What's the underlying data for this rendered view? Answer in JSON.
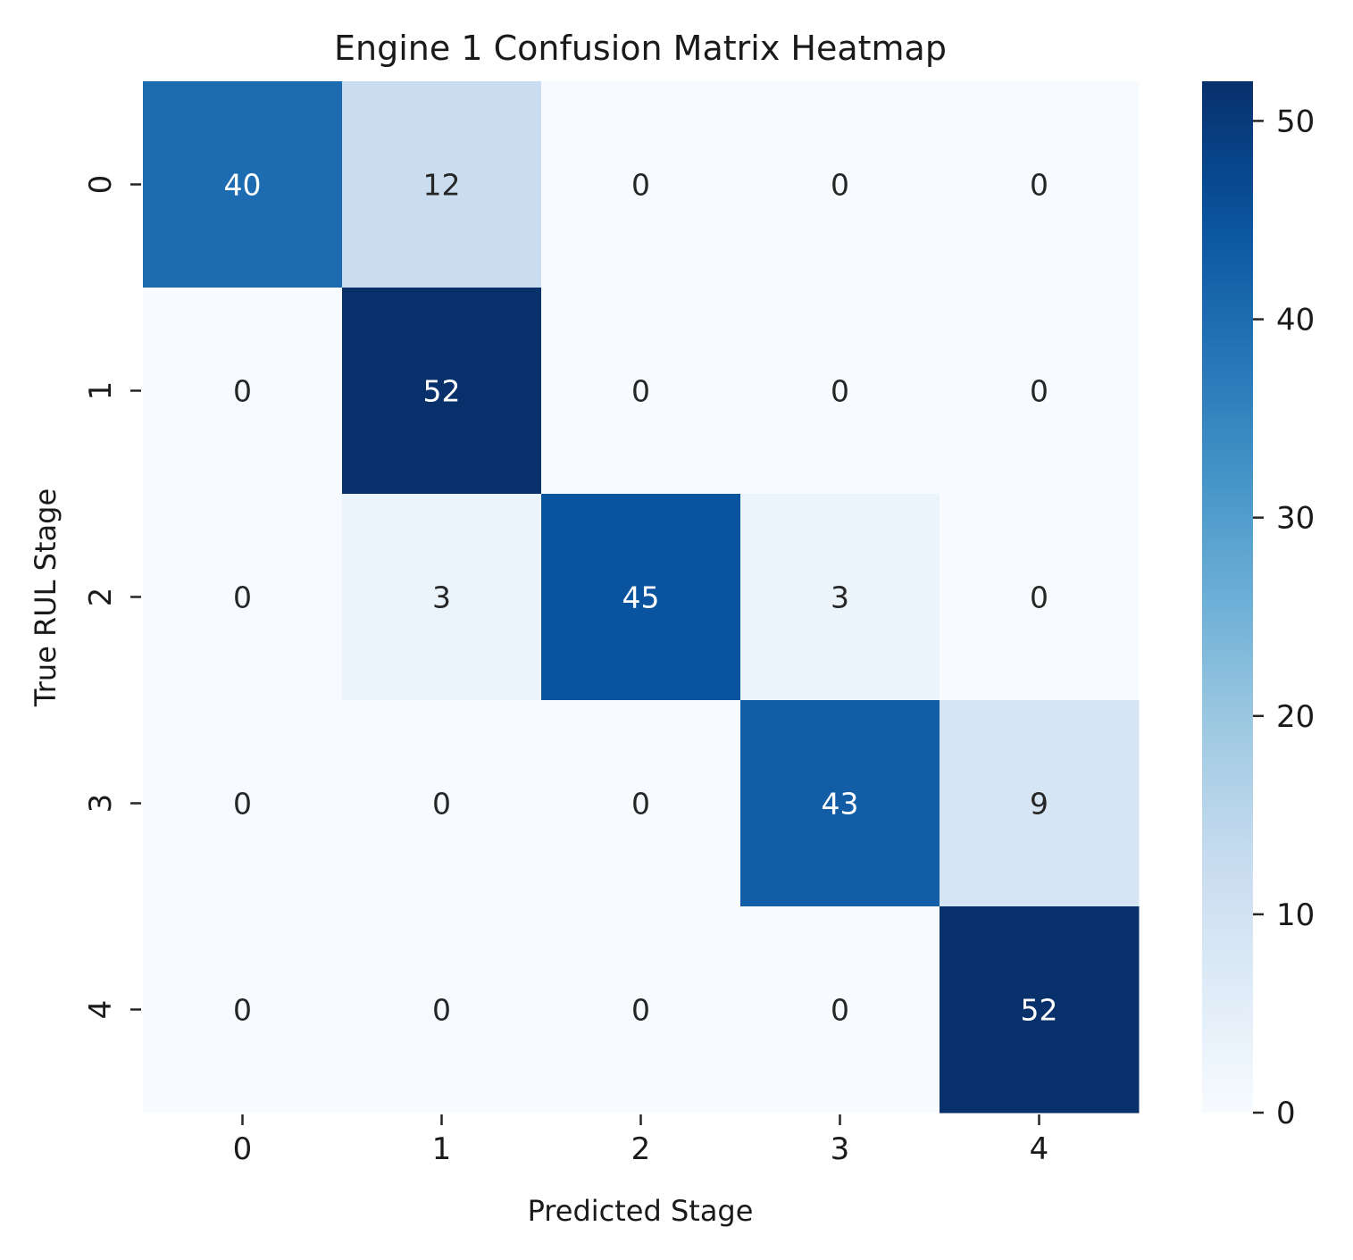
{
  "chart_data": {
    "type": "heatmap",
    "title": "Engine 1 Confusion Matrix Heatmap",
    "xlabel": "Predicted Stage",
    "ylabel": "True RUL Stage",
    "x_categories": [
      "0",
      "1",
      "2",
      "3",
      "4"
    ],
    "y_categories": [
      "0",
      "1",
      "2",
      "3",
      "4"
    ],
    "values": [
      [
        40,
        12,
        0,
        0,
        0
      ],
      [
        0,
        52,
        0,
        0,
        0
      ],
      [
        0,
        3,
        45,
        3,
        0
      ],
      [
        0,
        0,
        0,
        43,
        9
      ],
      [
        0,
        0,
        0,
        0,
        52
      ]
    ],
    "colorbar": {
      "vmin": 0,
      "vmax": 52,
      "ticks": [
        0,
        10,
        20,
        30,
        40,
        50
      ],
      "tick_labels": [
        "0",
        "10",
        "20",
        "30",
        "40",
        "50"
      ]
    },
    "colormap": "Blues",
    "annotations": true,
    "grid": false,
    "legend": "colorbar-right"
  }
}
